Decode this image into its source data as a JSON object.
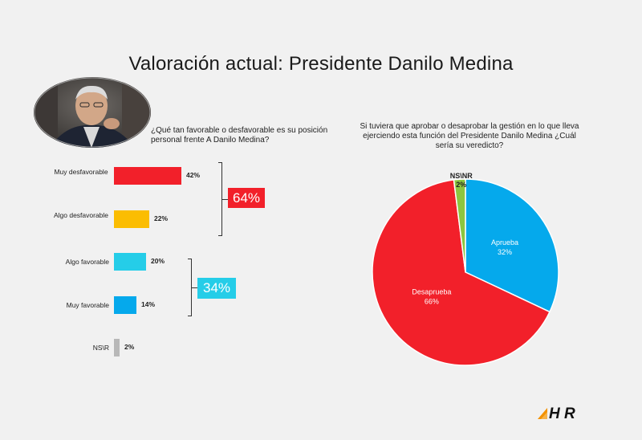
{
  "title": "Valoración actual: Presidente Danilo Medina",
  "question_left": "¿Qué tan favorable o desfavorable es su  posición personal frente A Danilo Medina?",
  "question_right": "Si tuviera que aprobar o desaprobar la gestión en lo que  lleva ejerciendo esta función del Presidente Danilo Medina ¿Cuál sería su veredicto?",
  "summary_unfavorable": "64%",
  "summary_favorable": "34%",
  "colors": {
    "red": "#f2202a",
    "yellow": "#fbbd02",
    "cyan": "#25cde8",
    "blue": "#05a9ec",
    "gray": "#b8b8b8",
    "green": "#8cc63f",
    "accent_orange": "#f39200"
  },
  "chart_data": [
    {
      "type": "bar",
      "orientation": "horizontal",
      "categories": [
        "Muy desfavorable",
        "Algo desfavorable",
        "Algo favorable",
        "Muy favorable",
        "NS\\R"
      ],
      "values": [
        42,
        22,
        20,
        14,
        2
      ],
      "value_labels": [
        "42%",
        "22%",
        "20%",
        "14%",
        "2%"
      ],
      "grid": false
    },
    {
      "type": "pie",
      "slices": [
        {
          "label": "Aprueba",
          "value": 32,
          "value_label": "32%"
        },
        {
          "label": "Desaprueba",
          "value": 66,
          "value_label": "66%"
        },
        {
          "label": "NS\\NR",
          "value": 2,
          "value_label": "2%"
        }
      ]
    }
  ],
  "logo_text": "H R"
}
